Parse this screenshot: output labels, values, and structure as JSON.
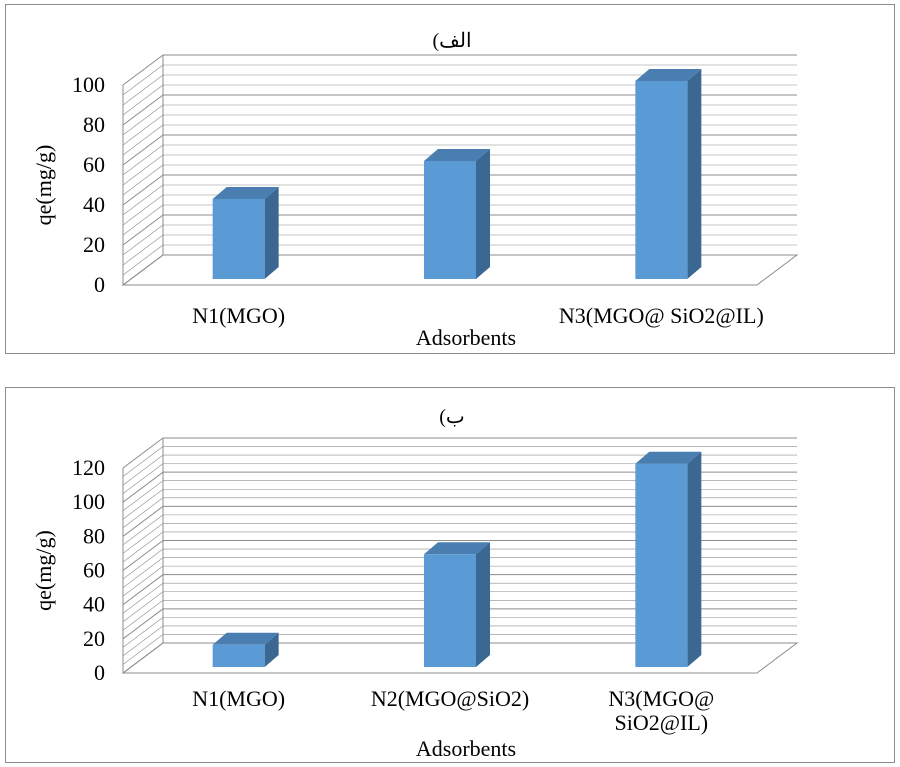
{
  "chart_data": [
    {
      "type": "bar",
      "title": "الف)",
      "xlabel": "Adsorbents",
      "ylabel": "qe(mg/g)",
      "ylim": [
        0,
        100
      ],
      "yticks": [
        "0",
        "20",
        "40",
        "60",
        "80",
        "100"
      ],
      "categories": [
        "N1(MGO)",
        "",
        "N3(MGO@ SiO2@IL)"
      ],
      "values": [
        40,
        59,
        99
      ],
      "grid": true,
      "colors": {
        "bar_front": "#5B9BD5",
        "bar_side": "#3A6892",
        "bar_top": "#4A7EB0",
        "grid": "#8c8c8c"
      }
    },
    {
      "type": "bar",
      "title": "ب)",
      "xlabel": "Adsorbents",
      "ylabel": "qe(mg/g)",
      "ylim": [
        0,
        120
      ],
      "yticks": [
        "0",
        "20",
        "40",
        "60",
        "80",
        "100",
        "120"
      ],
      "categories": [
        "N1(MGO)",
        "N2(MGO@SiO2)",
        "N3(MGO@\nSiO2@IL)"
      ],
      "values": [
        13,
        66,
        119
      ],
      "grid": true,
      "colors": {
        "bar_front": "#5B9BD5",
        "bar_side": "#3A6892",
        "bar_top": "#4A7EB0",
        "grid": "#8c8c8c"
      }
    }
  ]
}
